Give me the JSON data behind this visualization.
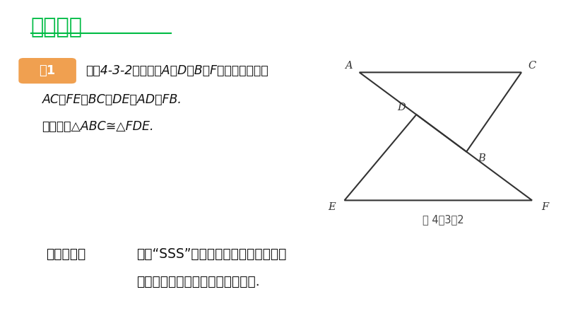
{
  "bg_color": "#ffffff",
  "title": "感悟新知",
  "title_color": "#00bb44",
  "title_fontsize": 22,
  "example_box_color": "#f0a050",
  "example_text": "例1",
  "line1": "如图4-3-2，已知点A，D，B，F在一条直线上，",
  "line2": "AC＝FE，BC＝DE，AD＝FB.",
  "line3": "试说明：△ABC≅△FDE.",
  "solution_bold": "解题秘方：",
  "solution_rest": "紧扣“SSS”找出两个三角形中三边对应",
  "solution_line2": "相等的条件来判定两个三角形全等.",
  "fig_caption": "图 4－3－2",
  "triangle_color": "#333333",
  "label_color": "#333333"
}
